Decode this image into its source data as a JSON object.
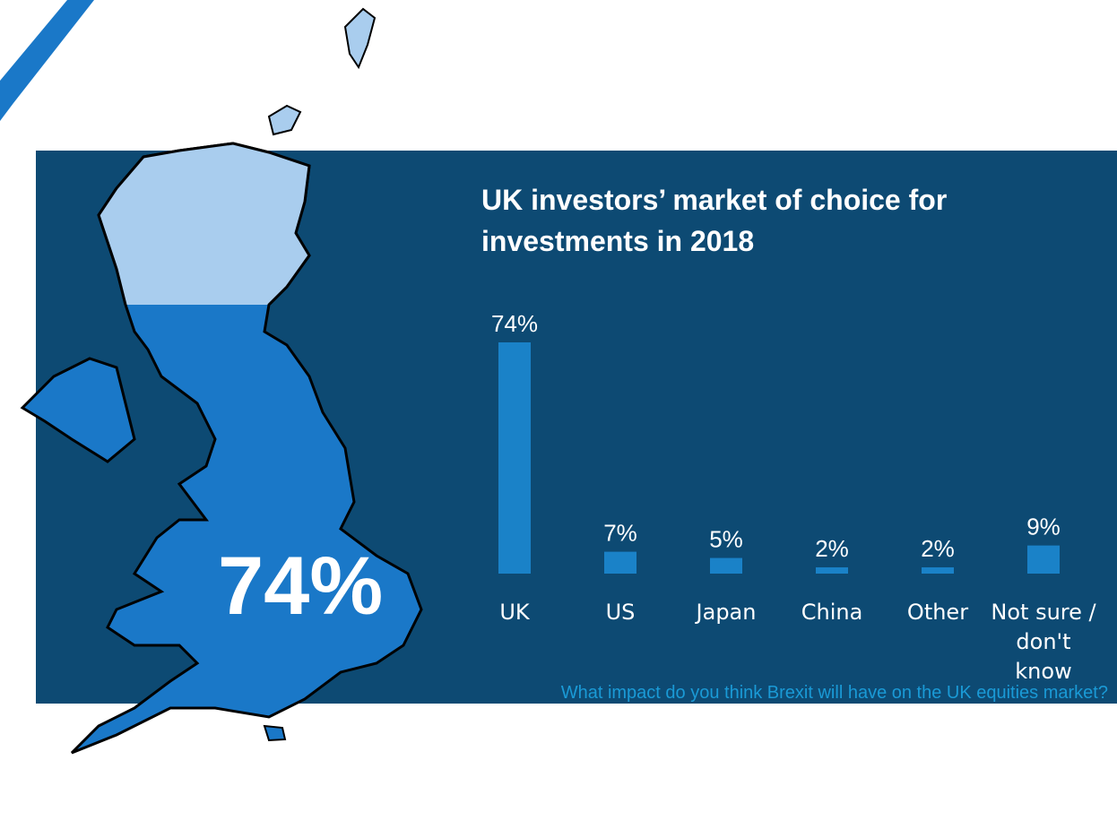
{
  "chart_data": {
    "type": "bar",
    "title": "UK investors’ market of choice for investments in 2018",
    "categories": [
      "UK",
      "US",
      "Japan",
      "China",
      "Other",
      "Not sure / don't know"
    ],
    "values": [
      74,
      7,
      5,
      2,
      2,
      9
    ],
    "value_labels": [
      "74%",
      "7%",
      "5%",
      "2%",
      "2%",
      "9%"
    ],
    "color": "#1a82c8",
    "map_label": "74%",
    "footnote": "What impact do you think Brexit will have on the UK equities market?"
  }
}
